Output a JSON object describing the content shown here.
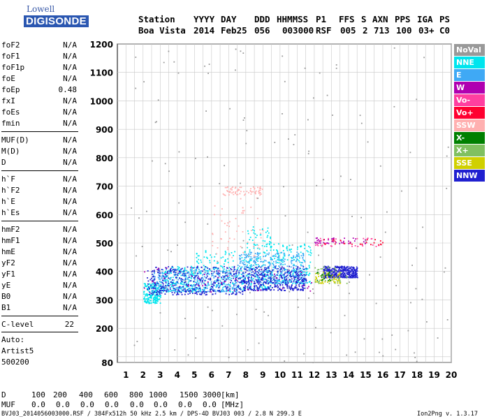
{
  "logo": {
    "top": "Lowell",
    "bottom": "DIGISONDE"
  },
  "header": {
    "labels": [
      "Station",
      "YYYY",
      "DAY",
      "DDD",
      "HHMMSS",
      "P1",
      "FFS",
      "S",
      "AXN",
      "PPS",
      "IGA",
      "PS"
    ],
    "values": [
      "Boa Vista",
      "2014",
      "Feb25",
      "056",
      "003000",
      "RSF",
      "005",
      "2",
      "713",
      "100",
      "03+",
      "C0"
    ]
  },
  "params": {
    "group1": [
      {
        "label": "foF2",
        "value": "N/A"
      },
      {
        "label": "foF1",
        "value": "N/A"
      },
      {
        "label": "foF1p",
        "value": "N/A"
      },
      {
        "label": "foE",
        "value": "N/A"
      },
      {
        "label": "foEp",
        "value": "0.48"
      },
      {
        "label": "fxI",
        "value": "N/A"
      },
      {
        "label": "foEs",
        "value": "N/A"
      },
      {
        "label": "fmin",
        "value": "N/A"
      }
    ],
    "group2": [
      {
        "label": "MUF(D)",
        "value": "N/A"
      },
      {
        "label": "M(D)",
        "value": "N/A"
      },
      {
        "label": "D",
        "value": "N/A"
      }
    ],
    "group3": [
      {
        "label": "h`F",
        "value": "N/A"
      },
      {
        "label": "h`F2",
        "value": "N/A"
      },
      {
        "label": "h`E",
        "value": "N/A"
      },
      {
        "label": "h`Es",
        "value": "N/A"
      }
    ],
    "group4": [
      {
        "label": "hmF2",
        "value": "N/A"
      },
      {
        "label": "hmF1",
        "value": "N/A"
      },
      {
        "label": "hmE",
        "value": "N/A"
      },
      {
        "label": "yF2",
        "value": "N/A"
      },
      {
        "label": "yF1",
        "value": "N/A"
      },
      {
        "label": "yE",
        "value": "N/A"
      },
      {
        "label": "B0",
        "value": "N/A"
      },
      {
        "label": "B1",
        "value": "N/A"
      }
    ],
    "clevel": {
      "label": "C-level",
      "value": "22"
    },
    "auto": [
      "Auto:",
      "Artist5",
      "500200"
    ]
  },
  "legend": [
    {
      "label": "NoVal",
      "color": "#999999"
    },
    {
      "label": "NNE",
      "color": "#00e5ee"
    },
    {
      "label": "E",
      "color": "#3fa9f5"
    },
    {
      "label": "W",
      "color": "#b000b0"
    },
    {
      "label": "Vo-",
      "color": "#ff3fa0"
    },
    {
      "label": "Vo+",
      "color": "#ff0030"
    },
    {
      "label": "SSW",
      "color": "#ffb0b0"
    },
    {
      "label": "X-",
      "color": "#008000"
    },
    {
      "label": "X+",
      "color": "#80c060"
    },
    {
      "label": "SSE",
      "color": "#d0d000"
    },
    {
      "label": "NNW",
      "color": "#2020d0"
    }
  ],
  "bottom": {
    "d_label": "D",
    "d_values": [
      "100",
      "200",
      "400",
      "600",
      "800",
      "1000",
      "1500",
      "3000"
    ],
    "d_unit": "[km]",
    "muf_label": "MUF",
    "muf_values": [
      "0.0",
      "0.0",
      "0.0",
      "0.0",
      "0.0",
      "0.0",
      "0.0",
      "0.0"
    ],
    "muf_unit": "[MHz]",
    "footer_left": "BVJ03_2014056003000.RSF / 384Fx512h 50 kHz 2.5 km / DPS-4D BVJ03 003 / 2.8 N 299.3 E",
    "footer_right": "Ion2Png v. 1.3.17"
  },
  "chart_data": {
    "type": "scatter",
    "title": "",
    "xlabel": "",
    "ylabel": "",
    "xlim": [
      0.5,
      20
    ],
    "ylim": [
      80,
      1200
    ],
    "xticks": [
      1,
      2,
      3,
      4,
      5,
      6,
      7,
      8,
      9,
      10,
      11,
      12,
      13,
      14,
      15,
      16,
      17,
      18,
      19,
      20
    ],
    "yticks": [
      80,
      100,
      200,
      300,
      400,
      500,
      600,
      700,
      800,
      900,
      1000,
      1100,
      1200
    ],
    "yticklabels": [
      "80",
      "",
      "200",
      "300",
      "400",
      "500",
      "600",
      "700",
      "800",
      "900",
      "1000",
      "1100",
      "1200"
    ],
    "grid": true,
    "legend_placement": "right",
    "series": [
      {
        "name": "NNE",
        "color": "#00e5ee",
        "clusters": [
          {
            "x": [
              2.0,
              3.0
            ],
            "y": [
              290,
              360
            ]
          },
          {
            "x": [
              3,
              5
            ],
            "y": [
              330,
              420
            ]
          },
          {
            "x": [
              5,
              8
            ],
            "y": [
              330,
              480
            ]
          },
          {
            "x": [
              8,
              9.5
            ],
            "y": [
              340,
              560
            ]
          },
          {
            "x": [
              9.5,
              11.8
            ],
            "y": [
              360,
              500
            ]
          }
        ]
      },
      {
        "name": "E",
        "color": "#3fa9f5",
        "clusters": [
          {
            "x": [
              2.5,
              7.5
            ],
            "y": [
              330,
              410
            ]
          },
          {
            "x": [
              7.5,
              11.5
            ],
            "y": [
              360,
              470
            ]
          }
        ]
      },
      {
        "name": "NNW",
        "color": "#2020d0",
        "clusters": [
          {
            "x": [
              2.2,
              7.8
            ],
            "y": [
              320,
              420
            ]
          },
          {
            "x": [
              7.8,
              11.5
            ],
            "y": [
              335,
              420
            ]
          },
          {
            "x": [
              12.5,
              14.5
            ],
            "y": [
              380,
              420
            ]
          }
        ]
      },
      {
        "name": "W",
        "color": "#b000b0",
        "clusters": [
          {
            "x": [
              2,
              12
            ],
            "y": [
              330,
              420
            ]
          },
          {
            "x": [
              12,
              15
            ],
            "y": [
              500,
              520
            ]
          }
        ]
      },
      {
        "name": "SSW",
        "color": "#ffb0b0",
        "clusters": [
          {
            "x": [
              6,
              9
            ],
            "y": [
              450,
              700
            ]
          },
          {
            "x": [
              6.5,
              9
            ],
            "y": [
              670,
              700
            ]
          }
        ]
      },
      {
        "name": "SSE",
        "color": "#d0d000",
        "clusters": [
          {
            "x": [
              12,
              13.5
            ],
            "y": [
              360,
              400
            ]
          }
        ]
      },
      {
        "name": "Vo-",
        "color": "#ff3fa0",
        "clusters": [
          {
            "x": [
              12,
              16
            ],
            "y": [
              490,
              520
            ]
          }
        ]
      },
      {
        "name": "Vo+",
        "color": "#ff0030",
        "clusters": [
          {
            "x": [
              12.5,
              16
            ],
            "y": [
              495,
              515
            ]
          }
        ]
      },
      {
        "name": "X+",
        "color": "#80c060",
        "clusters": [
          {
            "x": [
              12,
              14
            ],
            "y": [
              360,
              420
            ]
          }
        ]
      },
      {
        "name": "X-",
        "color": "#008000",
        "clusters": [
          {
            "x": [
              12,
              13
            ],
            "y": [
              370,
              400
            ]
          }
        ]
      },
      {
        "name": "NoVal",
        "color": "#999999",
        "clusters": [
          {
            "x": [
              1,
              20
            ],
            "y": [
              80,
              1200
            ]
          }
        ]
      }
    ]
  }
}
